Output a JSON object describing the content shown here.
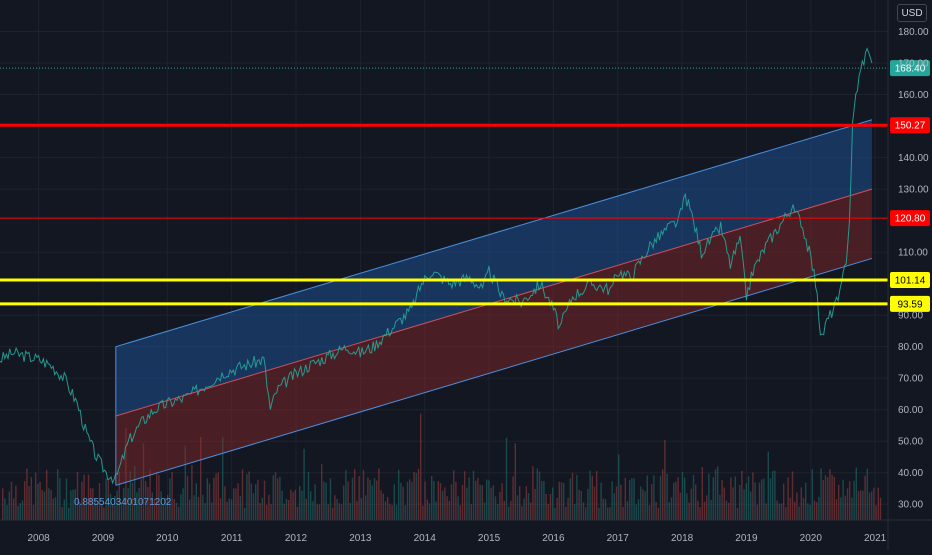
{
  "currency": "USD",
  "correlation_label": "0.8855403401071202",
  "chart_data": {
    "type": "line",
    "xaxis_labels": [
      "2008",
      "2009",
      "2010",
      "2011",
      "2012",
      "2013",
      "2014",
      "2015",
      "2016",
      "2017",
      "2018",
      "2019",
      "2020",
      "2021"
    ],
    "yaxis_labels": [
      "180.00",
      "170.00",
      "160.00",
      "140.00",
      "130.00",
      "110.00",
      "90.00",
      "80.00",
      "70.00",
      "60.00",
      "50.00",
      "40.00",
      "30.00"
    ],
    "ylim": [
      25,
      190
    ],
    "xlim": [
      2007.4,
      2021.2
    ],
    "last_price": {
      "value": 168.4,
      "label": "168.40",
      "color": "#26a69a"
    },
    "horizontal_levels": [
      {
        "value": 150.27,
        "label": "150.27",
        "color": "#ff0000"
      },
      {
        "value": 120.8,
        "label": "120.80",
        "color": "#ff0000"
      },
      {
        "value": 101.14,
        "label": "101.14",
        "color": "#ffff00"
      },
      {
        "value": 93.59,
        "label": "93.59",
        "color": "#ffff00"
      }
    ],
    "regression_channel": {
      "start_x": 2009.2,
      "end_x": 2020.95,
      "upper": [
        80,
        152
      ],
      "middle": [
        58,
        130
      ],
      "lower": [
        36,
        108
      ],
      "upper_color": "#1e5aa8",
      "lower_color": "#8c2a2a"
    },
    "price_series": {
      "name": "",
      "x": [
        2007.4,
        2007.6,
        2007.8,
        2008.0,
        2008.2,
        2008.4,
        2008.6,
        2008.75,
        2008.9,
        2009.05,
        2009.2,
        2009.4,
        2009.6,
        2009.8,
        2010.0,
        2010.3,
        2010.6,
        2010.9,
        2011.2,
        2011.5,
        2011.6,
        2011.7,
        2011.9,
        2012.2,
        2012.5,
        2012.8,
        2013.0,
        2013.2,
        2013.5,
        2013.8,
        2013.95,
        2014.1,
        2014.4,
        2014.7,
        2014.9,
        2015.0,
        2015.2,
        2015.5,
        2015.8,
        2016.0,
        2016.1,
        2016.3,
        2016.6,
        2016.9,
        2017.0,
        2017.2,
        2017.5,
        2017.8,
        2017.95,
        2018.05,
        2018.15,
        2018.3,
        2018.6,
        2018.75,
        2018.9,
        2019.0,
        2019.1,
        2019.3,
        2019.5,
        2019.7,
        2019.85,
        2020.0,
        2020.1,
        2020.15,
        2020.25,
        2020.35,
        2020.45,
        2020.55,
        2020.6,
        2020.65,
        2020.7,
        2020.8,
        2020.9,
        2020.95
      ],
      "y": [
        76,
        78,
        77,
        76,
        74,
        70,
        62,
        52,
        45,
        40,
        38,
        50,
        56,
        60,
        62,
        64,
        68,
        72,
        74,
        76,
        60,
        66,
        70,
        74,
        77,
        80,
        78,
        80,
        86,
        92,
        100,
        104,
        100,
        102,
        98,
        104,
        96,
        94,
        100,
        92,
        86,
        96,
        100,
        98,
        104,
        102,
        112,
        118,
        120,
        128,
        122,
        110,
        118,
        106,
        114,
        96,
        104,
        112,
        118,
        124,
        120,
        108,
        98,
        82,
        88,
        92,
        96,
        108,
        120,
        150,
        160,
        170,
        175,
        170
      ],
      "color": "#26a69a"
    },
    "volume_note": ""
  }
}
